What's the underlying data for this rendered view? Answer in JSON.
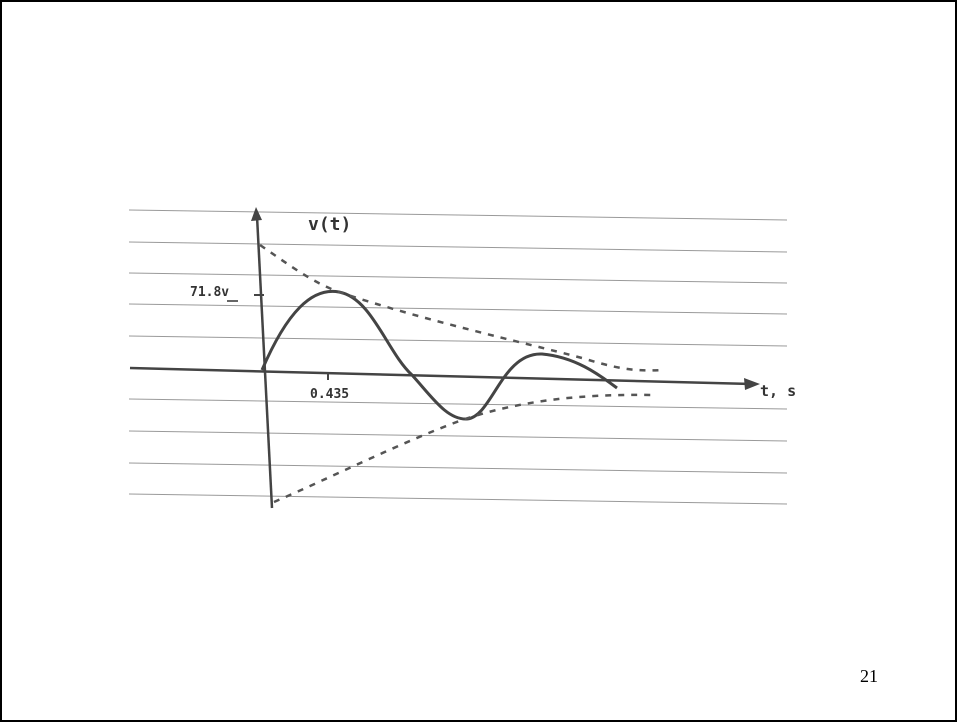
{
  "sketch": {
    "y_label": "v(t)",
    "peak_label": "71.8v",
    "x_mark_label": "0.435",
    "x_label": "t, s"
  },
  "footer": {
    "page_number": "21"
  }
}
